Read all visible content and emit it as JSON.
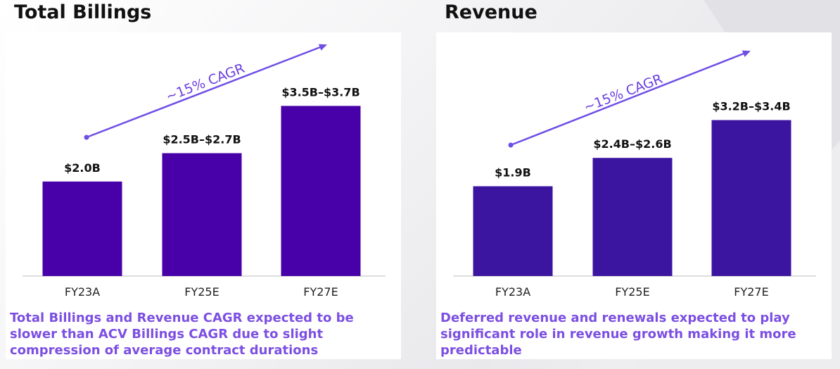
{
  "colors": {
    "bar_billings": "#4800a8",
    "bar_revenue": "#3b14a0",
    "arrow": "#6f4ee6",
    "note_text": "#7c4fe2"
  },
  "chart_data": [
    {
      "type": "bar",
      "title": "Total Billings",
      "categories": [
        "FY23A",
        "FY25E",
        "FY27E"
      ],
      "values": [
        2.0,
        2.6,
        3.6
      ],
      "ranges": [
        [
          2.0,
          2.0
        ],
        [
          2.5,
          2.7
        ],
        [
          3.5,
          3.7
        ]
      ],
      "data_labels": [
        "$2.0B",
        "$2.5B–$2.7B",
        "$3.5B–$3.7B"
      ],
      "unit": "$B",
      "ylim": [
        0,
        4.47
      ],
      "grid": false,
      "annotation": "~15% CAGR",
      "note": "Total Billings and Revenue CAGR expected to be slower than ACV Billings CAGR due to slight compression of average contract durations"
    },
    {
      "type": "bar",
      "title": "Revenue",
      "categories": [
        "FY23A",
        "FY25E",
        "FY27E"
      ],
      "values": [
        1.9,
        2.5,
        3.3
      ],
      "ranges": [
        [
          1.9,
          1.9
        ],
        [
          2.4,
          2.6
        ],
        [
          3.2,
          3.4
        ]
      ],
      "data_labels": [
        "$1.9B",
        "$2.4B–$2.6B",
        "$3.2B–$3.4B"
      ],
      "unit": "$B",
      "ylim": [
        0,
        4.47
      ],
      "grid": false,
      "annotation": "~15% CAGR",
      "note": "Deferred revenue and renewals expected to play significant role in revenue growth making it more predictable"
    }
  ]
}
